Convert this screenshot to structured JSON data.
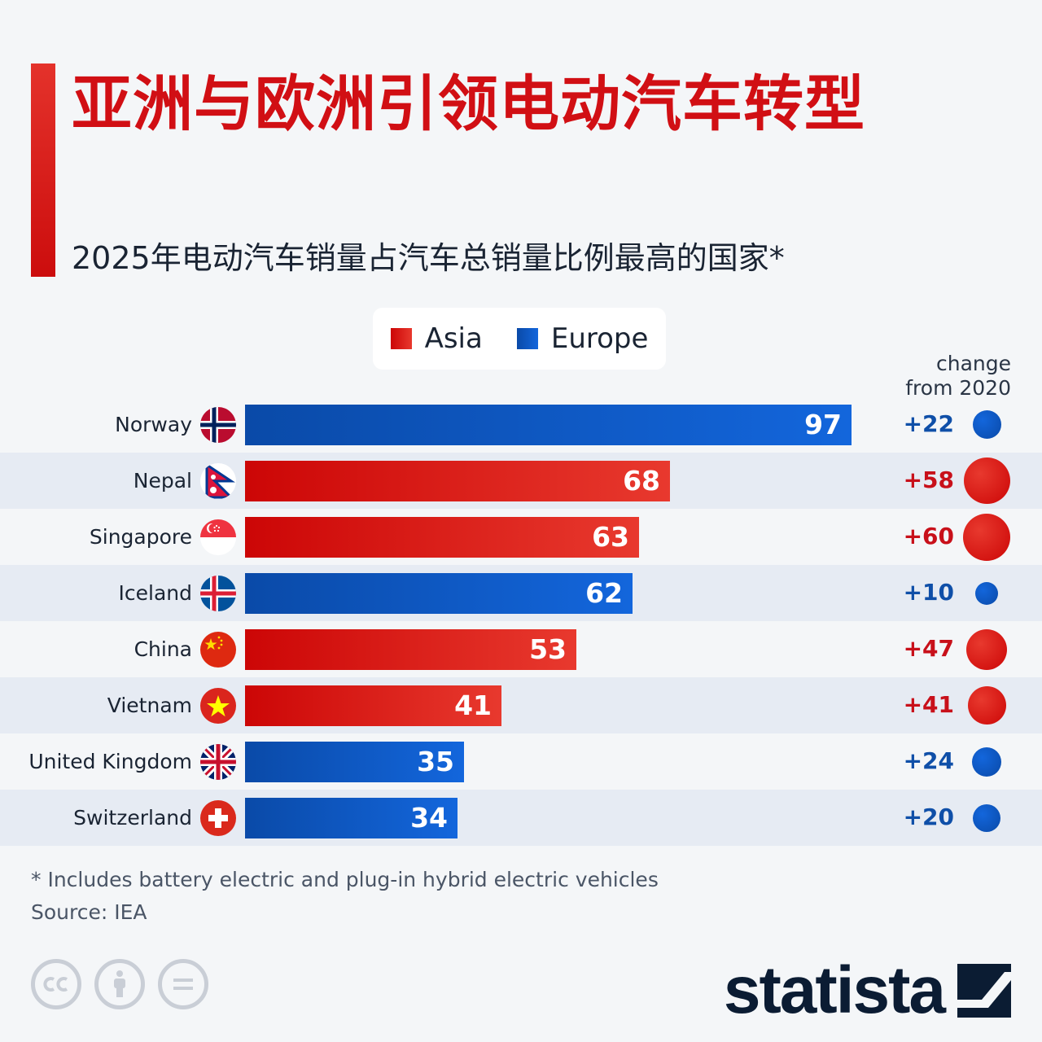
{
  "title": "亚洲与欧洲引领电动汽车转型",
  "subtitle": "2025年电动汽车销量占汽车总销量比例最高的国家*",
  "legend": {
    "items": [
      {
        "label": "Asia",
        "color": "#d10f14"
      },
      {
        "label": "Europe",
        "color": "#0f5bc8"
      }
    ]
  },
  "change_header": {
    "line1": "change",
    "line2": "from 2020"
  },
  "colors": {
    "asia_start": "#cc0606",
    "asia_end": "#e8392e",
    "europe_start": "#0a4aa8",
    "europe_end": "#1366dc",
    "asia_text": "#c8101a",
    "europe_text": "#0f4fa8",
    "row_alt": "#e6ebf3"
  },
  "chart_data": {
    "type": "bar",
    "orientation": "horizontal",
    "categories": [
      "Norway",
      "Nepal",
      "Singapore",
      "Iceland",
      "China",
      "Vietnam",
      "United Kingdom",
      "Switzerland"
    ],
    "values": [
      97,
      68,
      63,
      62,
      53,
      41,
      35,
      34
    ],
    "regions": [
      "Europe",
      "Asia",
      "Asia",
      "Europe",
      "Asia",
      "Asia",
      "Europe",
      "Europe"
    ],
    "change": [
      "+22",
      "+58",
      "+60",
      "+10",
      "+47",
      "+41",
      "+24",
      "+20"
    ],
    "change_values": [
      22,
      58,
      60,
      10,
      47,
      41,
      24,
      20
    ],
    "flags": [
      "norway-flag-icon",
      "nepal-flag-icon",
      "singapore-flag-icon",
      "iceland-flag-icon",
      "china-flag-icon",
      "vietnam-flag-icon",
      "united-kingdom-flag-icon",
      "switzerland-flag-icon"
    ],
    "xlim": [
      0,
      100
    ],
    "legend_position": "top-center",
    "grid": false
  },
  "footnote": "* Includes battery electric and plug-in hybrid electric vehicles",
  "source": "Source: IEA",
  "license_icons": [
    "cc-icon",
    "attribution-icon",
    "no-derivatives-icon"
  ],
  "brand": "statista"
}
